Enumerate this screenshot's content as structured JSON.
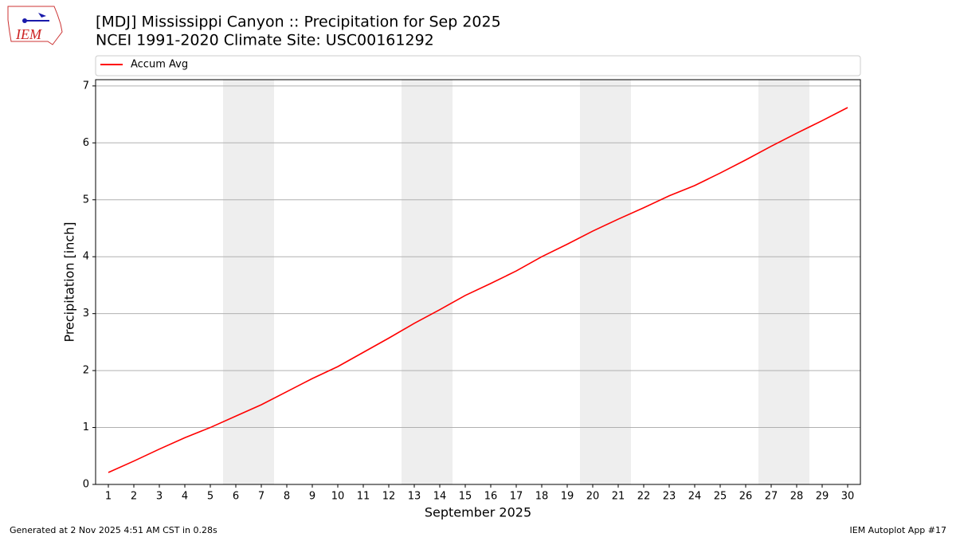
{
  "chart_data": {
    "type": "line",
    "title": "[MDJ] Mississippi Canyon :: Precipitation for Sep 2025",
    "subtitle": "NCEI 1991-2020 Climate Site: USC00161292",
    "x_label": "September 2025",
    "y_label": "Precipitation [inch]",
    "x": [
      1,
      2,
      3,
      4,
      5,
      6,
      7,
      8,
      9,
      10,
      11,
      12,
      13,
      14,
      15,
      16,
      17,
      18,
      19,
      20,
      21,
      22,
      23,
      24,
      25,
      26,
      27,
      28,
      29,
      30
    ],
    "series": [
      {
        "name": "Accum Avg",
        "color": "#ff0000",
        "values": [
          0.21,
          0.41,
          0.62,
          0.82,
          1.0,
          1.2,
          1.4,
          1.63,
          1.86,
          2.07,
          2.32,
          2.57,
          2.83,
          3.07,
          3.32,
          3.53,
          3.75,
          4.0,
          4.22,
          4.45,
          4.66,
          4.86,
          5.07,
          5.25,
          5.47,
          5.7,
          5.94,
          6.17,
          6.39,
          6.62
        ]
      }
    ],
    "xlim": [
      0.5,
      30.5
    ],
    "xticks": [
      1,
      2,
      3,
      4,
      5,
      6,
      7,
      8,
      9,
      10,
      11,
      12,
      13,
      14,
      15,
      16,
      17,
      18,
      19,
      20,
      21,
      22,
      23,
      24,
      25,
      26,
      27,
      28,
      29,
      30
    ],
    "ylim": [
      0,
      7.11
    ],
    "yticks": [
      0,
      1,
      2,
      3,
      4,
      5,
      6,
      7
    ],
    "grid": true,
    "weekend_shading": [
      [
        5.5,
        7.5
      ],
      [
        12.5,
        14.5
      ],
      [
        19.5,
        21.5
      ],
      [
        26.5,
        28.5
      ]
    ],
    "legend": "top"
  },
  "logo_text": "IEM",
  "footer": {
    "left": "Generated at 2 Nov 2025 4:51 AM CST in 0.28s",
    "right": "IEM Autoplot App #17"
  }
}
